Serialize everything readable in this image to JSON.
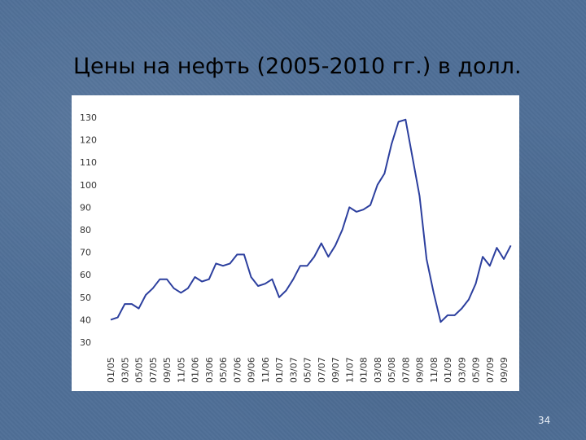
{
  "slide": {
    "title": "Цены на нефть (2005-2010 гг.) в долл.",
    "number": "34"
  },
  "colors": {
    "line": "#2c3f9e",
    "background": "#4f6f97",
    "panel": "#ffffff"
  },
  "chart_data": {
    "type": "line",
    "title": "",
    "xlabel": "",
    "ylabel": "",
    "ylim": [
      30,
      130
    ],
    "yticks": [
      "130",
      "120",
      "110",
      "100",
      "90",
      "80",
      "70",
      "60",
      "50",
      "40",
      "30"
    ],
    "grid": false,
    "legend": "none",
    "categories": [
      "01/05",
      "03/05",
      "05/05",
      "07/05",
      "09/05",
      "11/05",
      "01/06",
      "03/06",
      "05/06",
      "07/06",
      "09/06",
      "11/06",
      "01/07",
      "03/07",
      "05/07",
      "07/07",
      "09/07",
      "11/07",
      "01/08",
      "03/08",
      "05/08",
      "07/08",
      "09/08",
      "11/08",
      "01/09",
      "03/09",
      "05/09",
      "07/09",
      "09/09"
    ],
    "series": [
      {
        "x": [
          0,
          0.5,
          1,
          1.5,
          2,
          2.5,
          3,
          3.5,
          4,
          4.5,
          5,
          5.5,
          6,
          6.5,
          7,
          7.5,
          8,
          8.5,
          9,
          9.5,
          10,
          10.5,
          11,
          11.5,
          12,
          12.5,
          13,
          13.5,
          14,
          14.5,
          15,
          15.5,
          16,
          16.5,
          17,
          17.5,
          18,
          18.5,
          19,
          19.5,
          20,
          20.5,
          21,
          21.5,
          22,
          22.5,
          23,
          23.5,
          24,
          24.5,
          25,
          25.5,
          26,
          26.5,
          27,
          27.5,
          28,
          28.5
        ],
        "values": [
          40,
          41,
          47,
          47,
          45,
          51,
          54,
          58,
          58,
          54,
          52,
          54,
          59,
          57,
          58,
          65,
          64,
          65,
          69,
          69,
          59,
          55,
          56,
          58,
          50,
          53,
          58,
          64,
          64,
          68,
          74,
          68,
          73,
          80,
          90,
          88,
          89,
          91,
          100,
          105,
          118,
          128,
          129,
          112,
          95,
          67,
          52,
          39,
          42,
          42,
          45,
          49,
          56,
          68,
          64,
          72,
          67,
          73
        ]
      }
    ]
  }
}
